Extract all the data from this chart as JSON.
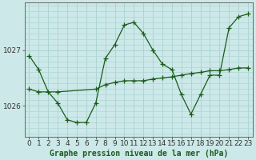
{
  "background_color": "#cce8e8",
  "plot_bg_color": "#cce8e8",
  "grid_color": "#b0d8d8",
  "line_color": "#1a5c1a",
  "title": "Graphe pression niveau de la mer (hPa)",
  "ylim": [
    1025.45,
    1027.85
  ],
  "xlim": [
    -0.5,
    23.5
  ],
  "yticks": [
    1026,
    1027
  ],
  "xticks": [
    0,
    1,
    2,
    3,
    4,
    5,
    6,
    7,
    8,
    9,
    10,
    11,
    12,
    13,
    14,
    15,
    16,
    17,
    18,
    19,
    20,
    21,
    22,
    23
  ],
  "line1_x": [
    0,
    1,
    2,
    3,
    4,
    5,
    6,
    7,
    8,
    9,
    10,
    11,
    12,
    13,
    14,
    15,
    16,
    17,
    18,
    19,
    20,
    21,
    22,
    23
  ],
  "line1_y": [
    1026.9,
    1026.65,
    1026.25,
    1026.05,
    1025.75,
    1025.7,
    1025.7,
    1026.05,
    1026.85,
    1027.1,
    1027.45,
    1027.5,
    1027.3,
    1027.0,
    1026.75,
    1026.65,
    1026.2,
    1025.85,
    1026.2,
    1026.55,
    1026.55,
    1027.4,
    1027.6,
    1027.65
  ],
  "line2_x": [
    0,
    1,
    3,
    7,
    8,
    9,
    10,
    11,
    12,
    13,
    14,
    15,
    16,
    17,
    18,
    19,
    20,
    21,
    22,
    23
  ],
  "line2_y": [
    1026.3,
    1026.25,
    1026.25,
    1026.3,
    1026.38,
    1026.42,
    1026.45,
    1026.45,
    1026.45,
    1026.48,
    1026.5,
    1026.52,
    1026.55,
    1026.58,
    1026.6,
    1026.63,
    1026.63,
    1026.65,
    1026.68,
    1026.68
  ],
  "tick_fontsize": 6.5,
  "title_fontsize": 7
}
